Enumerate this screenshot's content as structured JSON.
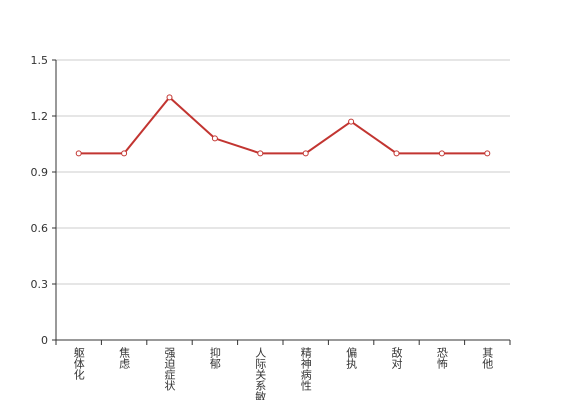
{
  "chart_data": {
    "type": "line",
    "categories": [
      "躯体化",
      "焦虑",
      "强迫症状",
      "抑郁",
      "人际关系敏感",
      "精神病性",
      "偏执",
      "敌对",
      "恐怖",
      "其他"
    ],
    "series": [
      {
        "color": "#c23531",
        "values": [
          1.0,
          1.0,
          1.3,
          1.08,
          1.0,
          1.0,
          1.17,
          1.0,
          1.0,
          1.0
        ]
      }
    ],
    "ylim": [
      0,
      1.5
    ],
    "yticks": [
      0,
      0.3,
      0.6,
      0.9,
      1.2,
      1.5
    ],
    "grid": true
  }
}
